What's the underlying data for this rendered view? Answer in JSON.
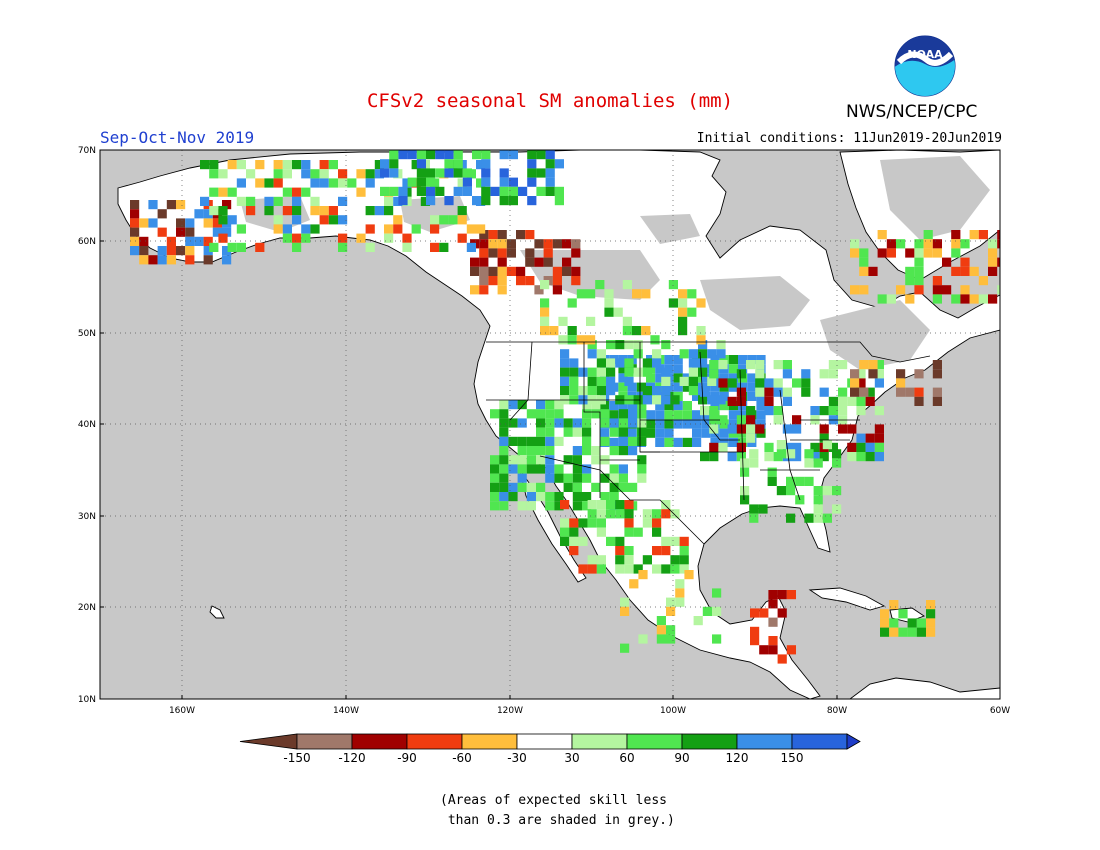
{
  "header": {
    "title": "CFSv2 seasonal SM anomalies (mm)",
    "agency": "NWS/NCEP/CPC",
    "logo_text": "NOAA",
    "season": "Sep-Oct-Nov 2019",
    "initial_conditions": "Initial conditions: 11Jun2019-20Jun2019"
  },
  "map": {
    "lon_labels": [
      "160W",
      "140W",
      "120W",
      "100W",
      "80W",
      "60W"
    ],
    "lat_labels": [
      "70N",
      "60N",
      "50N",
      "40N",
      "30N",
      "20N",
      "10N"
    ],
    "colors": {
      "ocean": "#c8c8c8",
      "land_white": "#ffffff",
      "low_skill_grey": "#c8c8c8",
      "border": "#000000",
      "grid": "#555555"
    },
    "regions": [
      {
        "name": "us-great-plains",
        "category": "120 to 150",
        "color": "#3a8fe8"
      },
      {
        "name": "us-west",
        "category": "60 to 120",
        "color": "#21a321"
      },
      {
        "name": "western-canada",
        "category": "-150 to -120",
        "color": "#a0786a"
      },
      {
        "name": "alaska",
        "category": "-90 to -30",
        "color": "#ff8c1a"
      }
    ]
  },
  "colorbar": {
    "labels": [
      "-150",
      "-120",
      "-90",
      "-60",
      "-30",
      "30",
      "60",
      "90",
      "120",
      "150"
    ],
    "colors": [
      "#6b3a2a",
      "#a0786a",
      "#a00000",
      "#f03c10",
      "#ffbe3c",
      "#ffffff",
      "#b4f5a0",
      "#50e650",
      "#14a014",
      "#3a8fe8",
      "#2864dc",
      "#1e3cc8"
    ]
  },
  "footnote": {
    "line1": "(Areas of expected skill less",
    "line2": " than 0.3 are shaded in grey.)"
  }
}
